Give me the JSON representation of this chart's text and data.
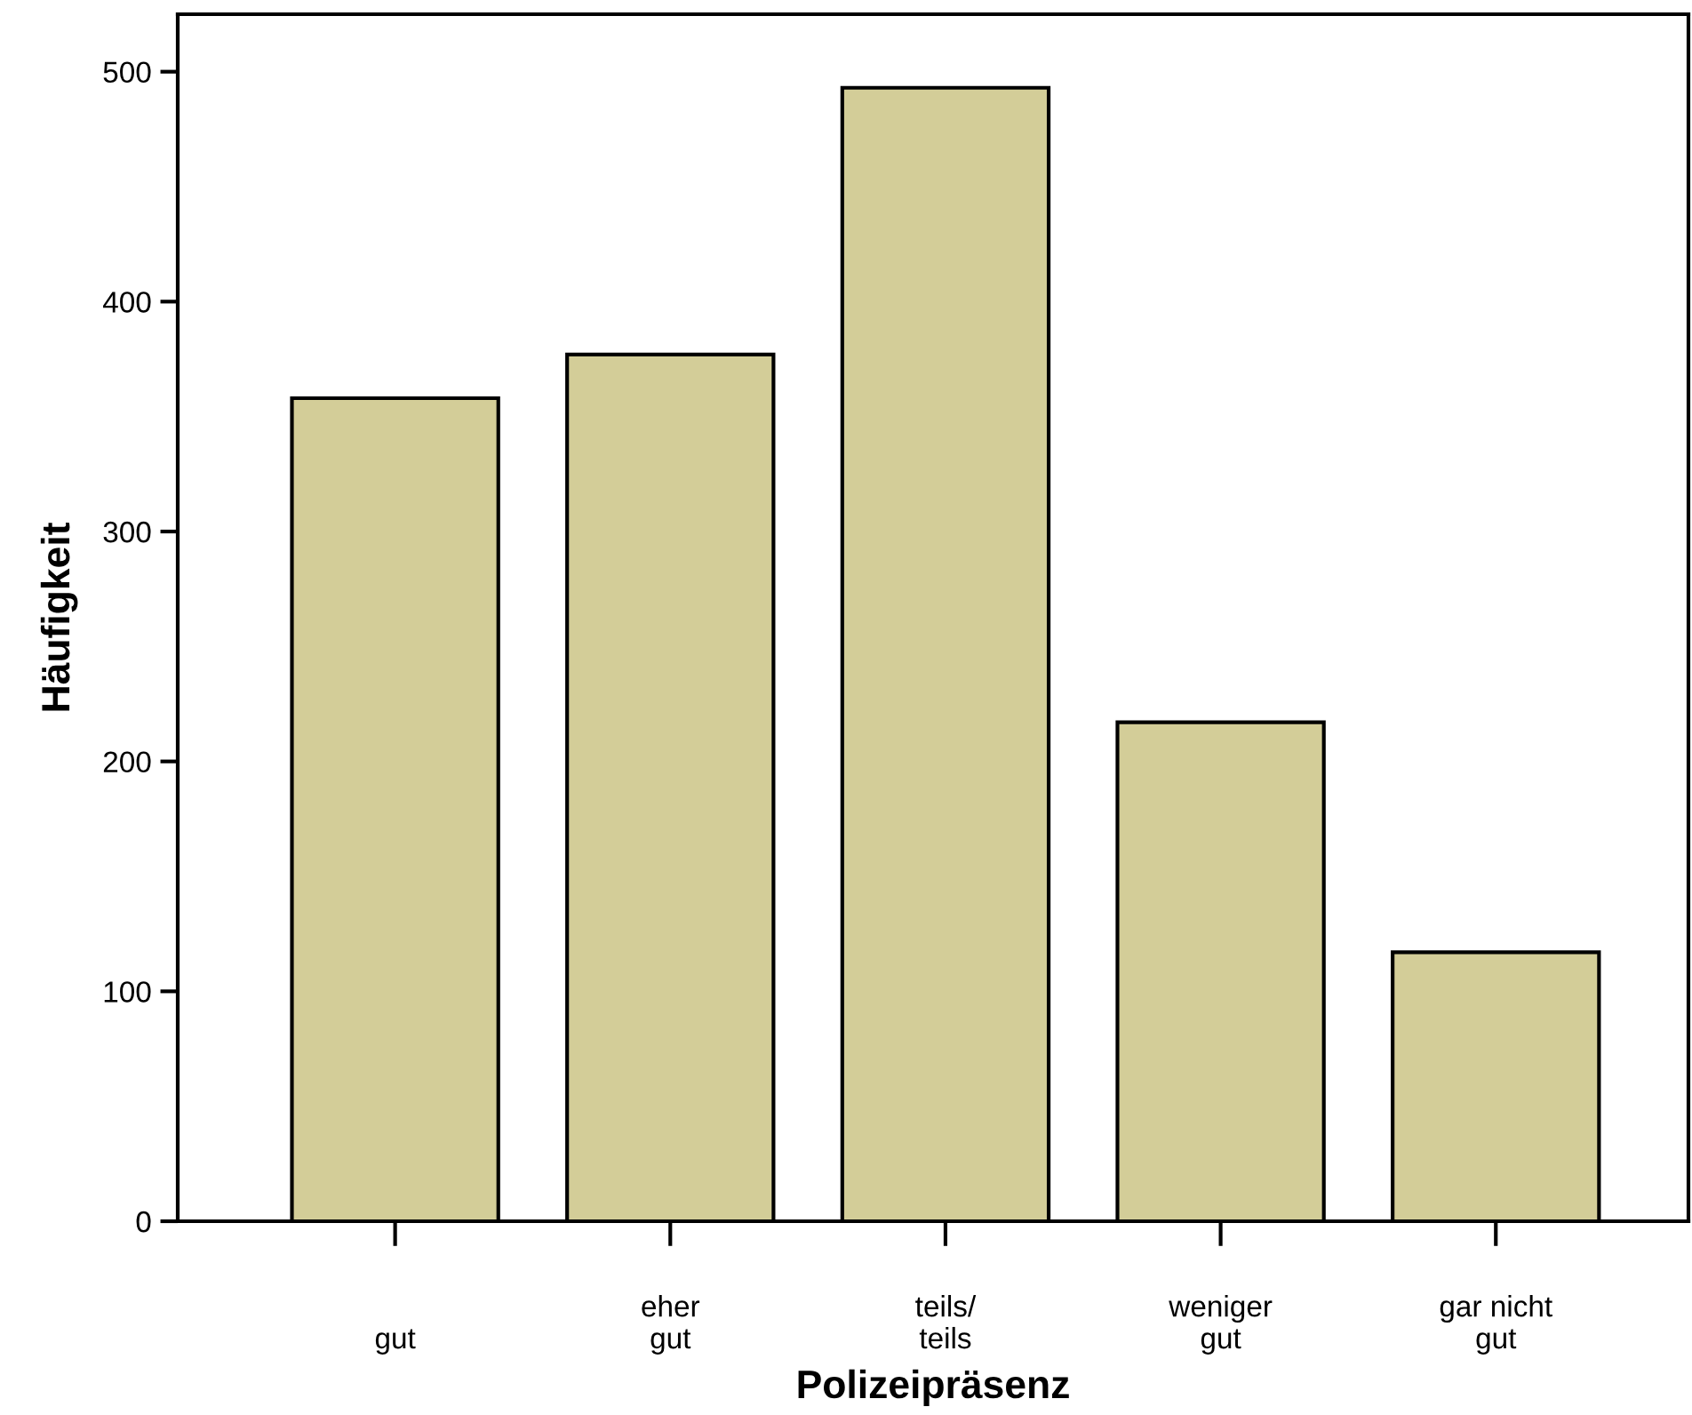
{
  "chart_data": {
    "type": "bar",
    "xlabel": "Polizeipräsenz",
    "ylabel": "Häufigkeit",
    "categories": [
      "gut",
      "eher\ngut",
      "teils/\nteils",
      "weniger\ngut",
      "gar nicht\ngut"
    ],
    "values": [
      358,
      377,
      493,
      217,
      117
    ],
    "color": "#d3cd98",
    "ylim": [
      0,
      525
    ],
    "yticks": [
      0,
      100,
      200,
      300,
      400,
      500
    ],
    "grid": false
  }
}
